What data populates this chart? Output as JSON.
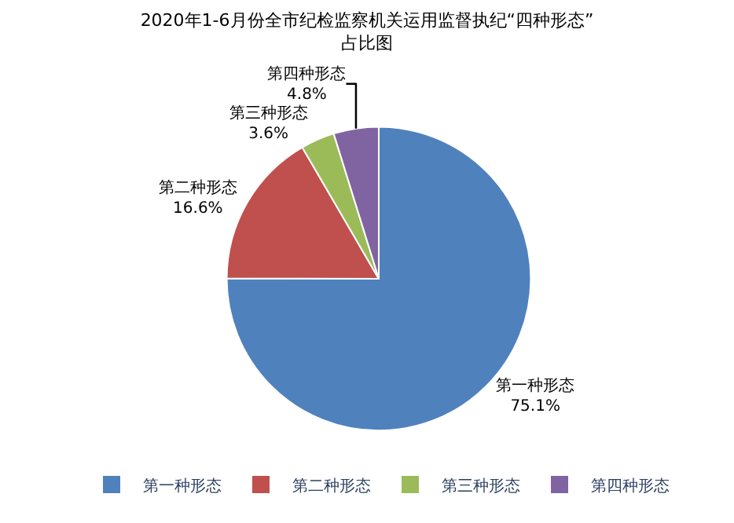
{
  "chart_data": {
    "type": "pie",
    "title": "2020年1-6月份全市纪检监察机关运用监督执纪“四种形态”\n占比图",
    "categories": [
      "第一种形态",
      "第二种形态",
      "第三种形态",
      "第四种形态"
    ],
    "values": [
      75.1,
      16.6,
      3.6,
      4.8
    ],
    "value_labels": [
      "75.1%",
      "16.6%",
      "3.6%",
      "4.8%"
    ],
    "colors": [
      "#4f81bd",
      "#c0504d",
      "#9bbb59",
      "#8064a2"
    ],
    "legend": "bottom"
  }
}
